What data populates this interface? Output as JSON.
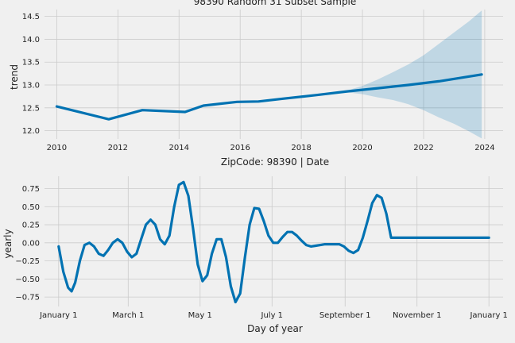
{
  "colors": {
    "background": "#f0f0f0",
    "line": "#0072b2",
    "band": "#0072b2",
    "grid": "#cbcbcb"
  },
  "chart_data": [
    {
      "type": "line",
      "title": "98390 Random 31 Subset Sample",
      "xlabel": "",
      "ylabel": "trend",
      "xlim": [
        2009.6,
        2024.6
      ],
      "ylim": [
        11.82,
        14.65
      ],
      "xticks": [
        2010,
        2012,
        2014,
        2016,
        2018,
        2020,
        2022,
        2024
      ],
      "yticks": [
        12.0,
        12.5,
        13.0,
        13.5,
        14.0,
        14.5
      ],
      "ytick_labels": [
        "12.0",
        "12.5",
        "13.0",
        "13.5",
        "14.0",
        "14.5"
      ],
      "grid": true,
      "series": [
        {
          "x": [
            2010.0,
            2011.7,
            2012.8,
            2014.2,
            2014.8,
            2015.9,
            2016.6,
            2017.4,
            2018.5,
            2019.5,
            2020.5,
            2021.5,
            2022.5,
            2023.9
          ],
          "y": [
            12.53,
            12.25,
            12.45,
            12.41,
            12.55,
            12.63,
            12.64,
            12.7,
            12.78,
            12.86,
            12.93,
            13.0,
            13.08,
            13.23
          ]
        }
      ],
      "uncertainty": {
        "x": [
          2019.5,
          2020.0,
          2020.5,
          2021.0,
          2021.5,
          2022.0,
          2022.5,
          2023.0,
          2023.5,
          2023.9
        ],
        "lower": [
          12.84,
          12.8,
          12.73,
          12.67,
          12.58,
          12.45,
          12.29,
          12.15,
          11.98,
          11.83
        ],
        "upper": [
          12.88,
          12.98,
          13.12,
          13.28,
          13.45,
          13.65,
          13.9,
          14.15,
          14.4,
          14.63
        ]
      }
    },
    {
      "type": "line",
      "title": "ZipCode: 98390 | Date",
      "xlabel": "Day of year",
      "ylabel": "yearly",
      "xlim": [
        -12,
        377
      ],
      "ylim": [
        -0.88,
        0.92
      ],
      "xticks": [
        0,
        59,
        120,
        181,
        243,
        304,
        365
      ],
      "xtick_labels": [
        "January 1",
        "March 1",
        "May 1",
        "July 1",
        "September 1",
        "November 1",
        "January 1"
      ],
      "yticks": [
        -0.75,
        -0.5,
        -0.25,
        0.0,
        0.25,
        0.5,
        0.75
      ],
      "ytick_labels": [
        "−0.75",
        "−0.50",
        "−0.25",
        "0.00",
        "0.25",
        "0.50",
        "0.75"
      ],
      "grid": true,
      "series": [
        {
          "x": [
            0,
            4,
            8,
            11,
            14,
            18,
            22,
            26,
            30,
            34,
            38,
            42,
            46,
            50,
            54,
            58,
            62,
            66,
            70,
            74,
            78,
            82,
            86,
            90,
            94,
            98,
            102,
            106,
            110,
            114,
            118,
            122,
            126,
            130,
            134,
            138,
            142,
            146,
            150,
            154,
            158,
            162,
            166,
            170,
            174,
            178,
            182,
            186,
            190,
            194,
            198,
            202,
            206,
            210,
            214,
            218,
            222,
            226,
            230,
            234,
            238,
            242,
            246,
            250,
            254,
            258,
            262,
            266,
            270,
            274,
            278,
            282,
            286,
            290,
            294,
            298,
            302,
            306,
            310,
            314,
            318,
            322,
            326,
            330,
            334,
            338,
            342,
            346,
            350,
            354,
            358,
            362,
            365
          ],
          "y": [
            -0.05,
            -0.4,
            -0.62,
            -0.67,
            -0.55,
            -0.25,
            -0.03,
            0.0,
            -0.05,
            -0.15,
            -0.18,
            -0.1,
            0.0,
            0.05,
            0.0,
            -0.12,
            -0.2,
            -0.15,
            0.05,
            0.25,
            0.32,
            0.25,
            0.05,
            -0.02,
            0.1,
            0.5,
            0.8,
            0.84,
            0.65,
            0.2,
            -0.3,
            -0.53,
            -0.45,
            -0.15,
            0.05,
            0.05,
            -0.2,
            -0.6,
            -0.82,
            -0.7,
            -0.2,
            0.25,
            0.48,
            0.47,
            0.3,
            0.1,
            0.0,
            0.0,
            0.08,
            0.15,
            0.15,
            0.1,
            0.03,
            -0.03,
            -0.05,
            -0.04,
            -0.03,
            -0.02,
            -0.02,
            -0.02,
            -0.02,
            -0.05,
            -0.11,
            -0.14,
            -0.1,
            0.07,
            0.3,
            0.55,
            0.66,
            0.62,
            0.4,
            0.07,
            0.07,
            0.07,
            0.07,
            0.07,
            0.07,
            0.07,
            0.07,
            0.07,
            0.07,
            0.07,
            0.07,
            0.07,
            0.07,
            0.07,
            0.07,
            0.07,
            0.07,
            0.07,
            0.07,
            0.07,
            0.07
          ]
        }
      ]
    }
  ]
}
